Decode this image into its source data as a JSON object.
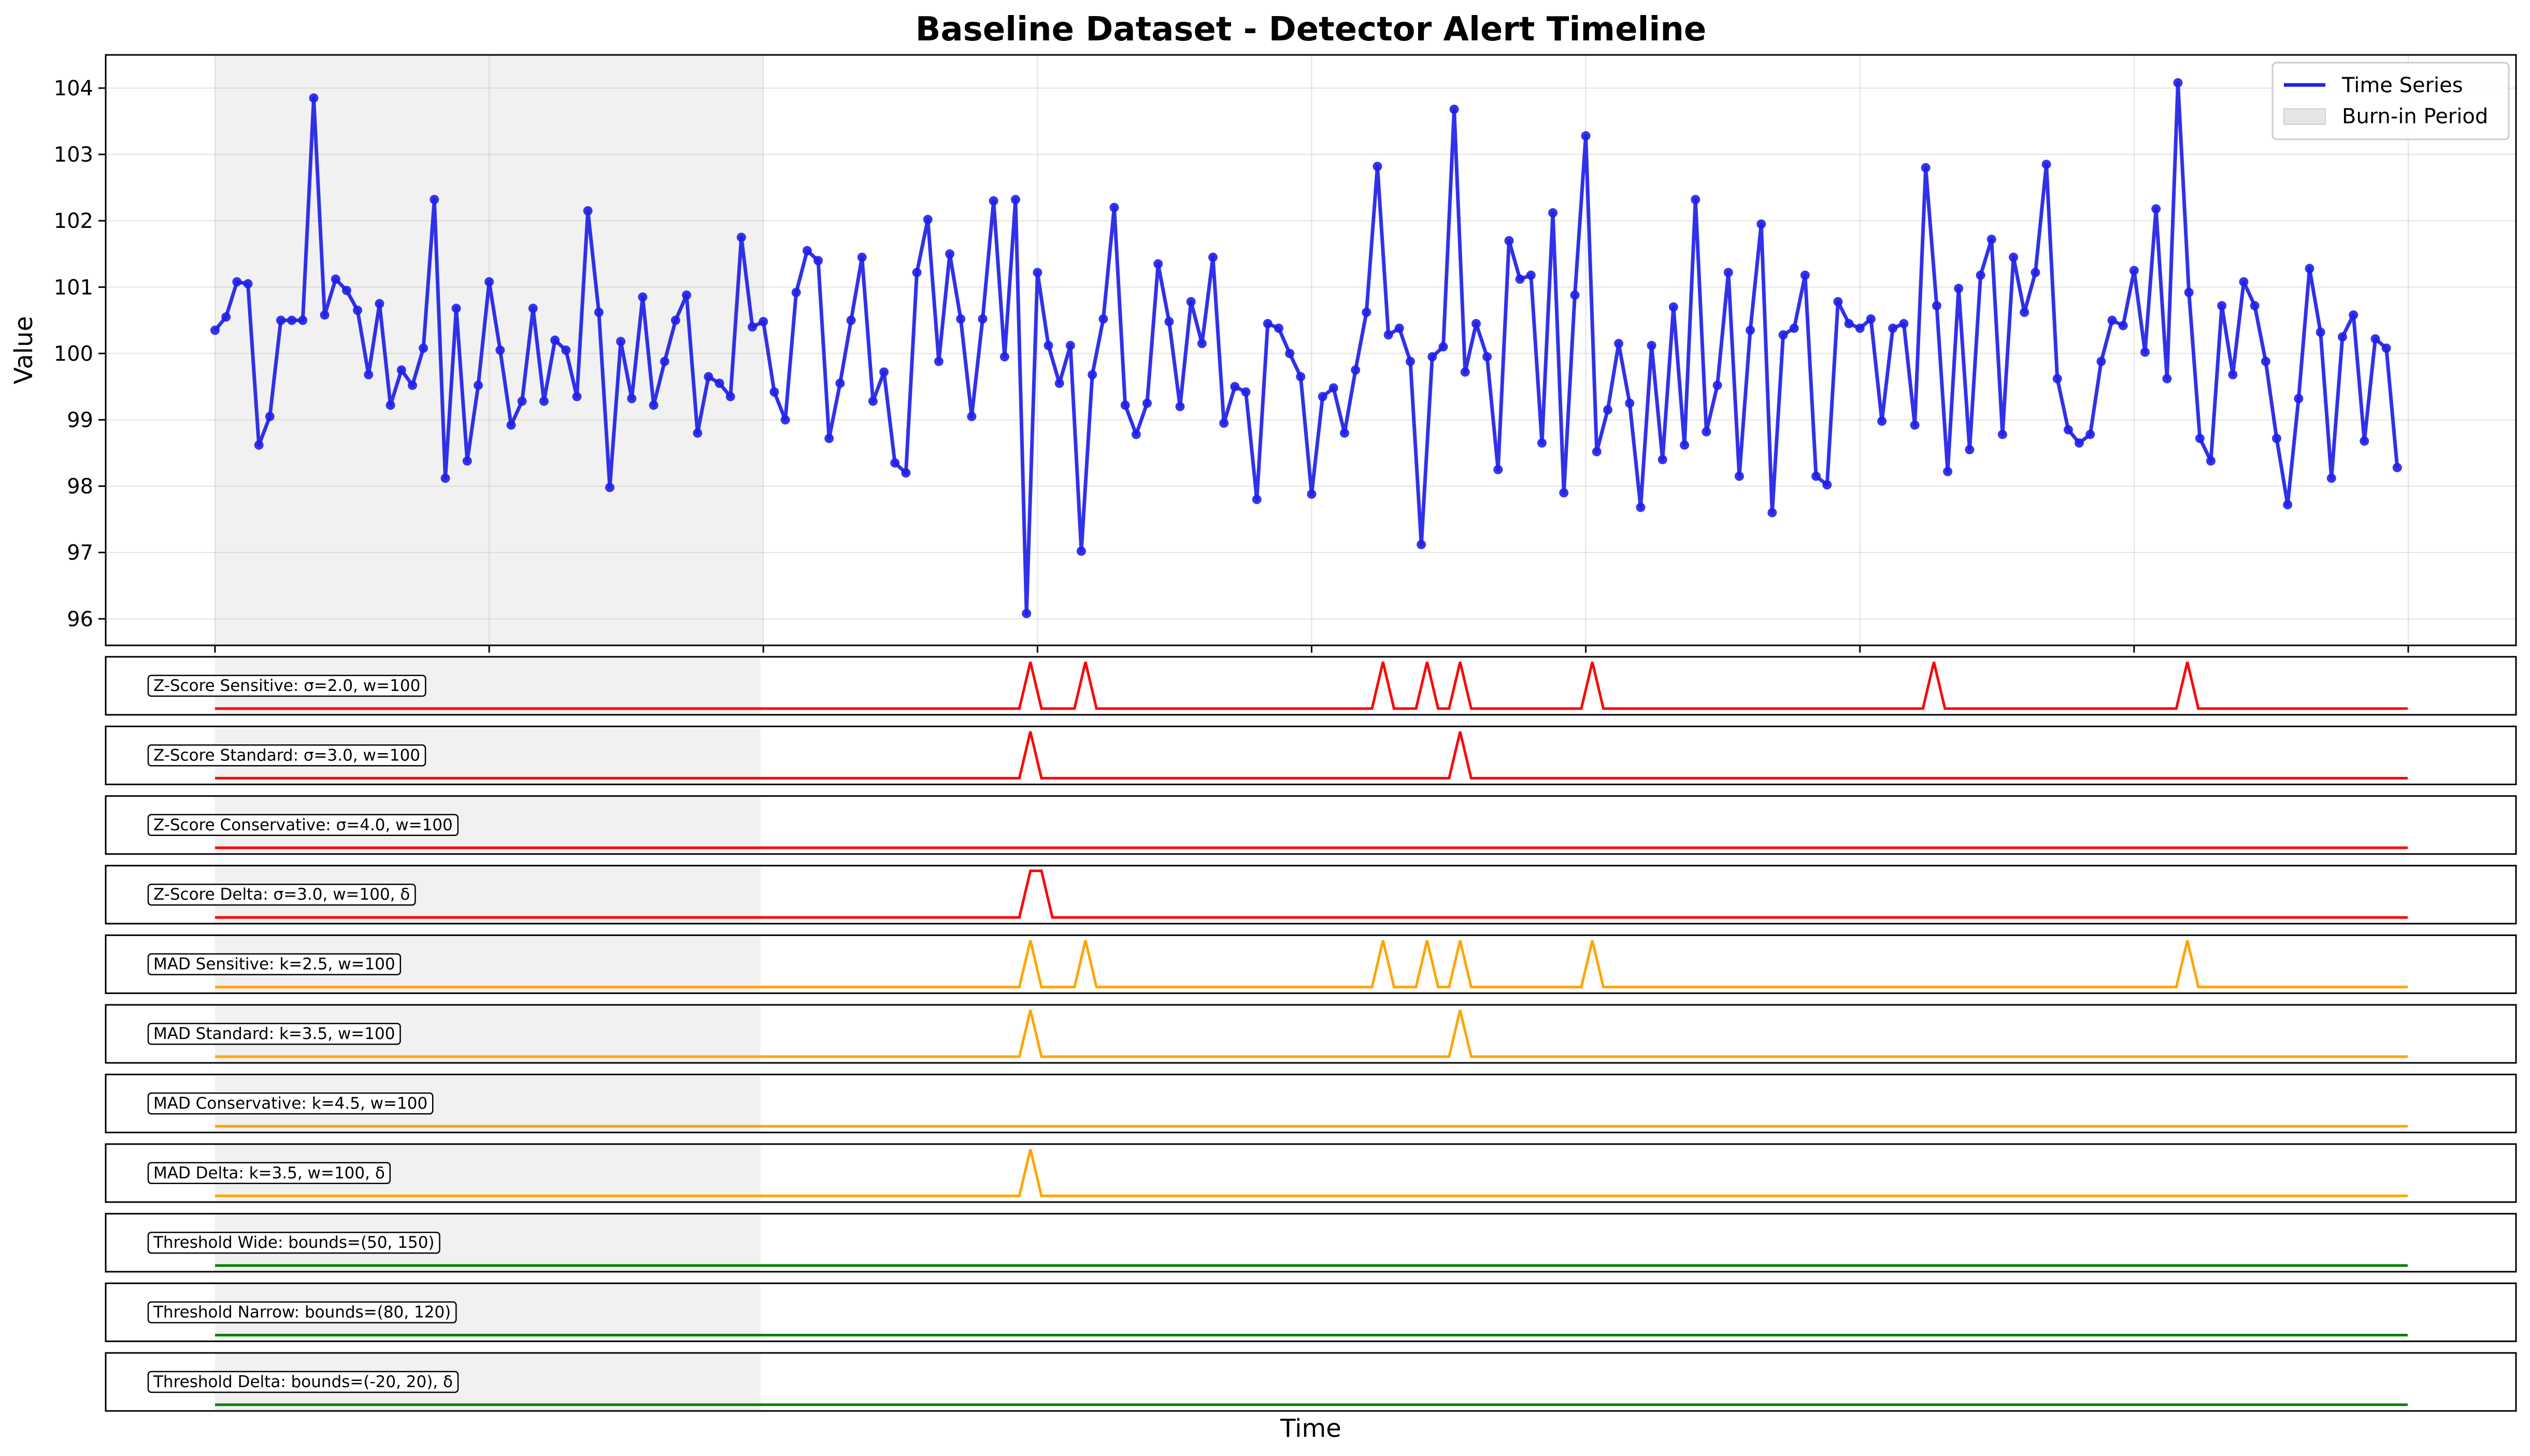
{
  "chart_data": {
    "type": "line",
    "title": "Baseline Dataset - Detector Alert Timeline",
    "xlabel": "Time",
    "ylabel": "Value",
    "xlim": [
      -2,
      200
    ],
    "ylim": [
      95.6,
      104.5
    ],
    "yticks": [
      96,
      97,
      98,
      99,
      100,
      101,
      102,
      103,
      104
    ],
    "xticks": [
      0,
      25,
      50,
      75,
      100,
      125,
      150,
      175,
      200
    ],
    "grid": true,
    "legend_position": "top-right",
    "legend": [
      {
        "label": "Time Series",
        "kind": "line"
      },
      {
        "label": "Burn-in Period",
        "kind": "patch"
      }
    ],
    "burn_in": {
      "label": "Burn-in Period",
      "x_start": 0,
      "x_end": 50
    },
    "series": [
      {
        "name": "Time Series",
        "color": "#2020e8",
        "values": [
          100.35,
          100.55,
          101.08,
          101.05,
          98.62,
          99.05,
          100.5,
          100.5,
          100.5,
          103.85,
          100.58,
          101.12,
          100.95,
          100.65,
          99.68,
          100.75,
          99.22,
          99.75,
          99.52,
          100.08,
          102.32,
          98.12,
          100.68,
          98.38,
          99.52,
          101.08,
          100.05,
          98.92,
          99.28,
          100.68,
          99.28,
          100.2,
          100.05,
          99.35,
          102.15,
          100.62,
          97.98,
          100.18,
          99.32,
          100.85,
          99.22,
          99.88,
          100.5,
          100.88,
          98.8,
          99.65,
          99.55,
          99.35,
          101.75,
          100.4,
          100.48,
          99.42,
          99.0,
          100.92,
          101.55,
          101.4,
          98.72,
          99.55,
          100.5,
          101.45,
          99.28,
          99.72,
          98.35,
          98.2,
          101.22,
          102.02,
          99.88,
          101.5,
          100.52,
          99.05,
          100.52,
          102.3,
          99.95,
          102.32,
          96.08,
          101.22,
          100.12,
          99.55,
          100.12,
          97.02,
          99.68,
          100.52,
          102.2,
          99.22,
          98.78,
          99.25,
          101.35,
          100.48,
          99.2,
          100.78,
          100.15,
          101.45,
          98.95,
          99.5,
          99.42,
          97.8,
          100.45,
          100.38,
          100.0,
          99.65,
          97.88,
          99.35,
          99.48,
          98.8,
          99.75,
          100.62,
          102.82,
          100.28,
          100.38,
          99.88,
          97.12,
          99.95,
          100.1,
          103.68,
          99.72,
          100.45,
          99.95,
          98.25,
          101.7,
          101.12,
          101.18,
          98.65,
          102.12,
          97.9,
          100.88,
          103.28,
          98.52,
          99.15,
          100.15,
          99.25,
          97.68,
          100.12,
          98.4,
          100.7,
          98.62,
          102.32,
          98.82,
          99.52,
          101.22,
          98.15,
          100.35,
          101.95,
          97.6,
          100.28,
          100.38,
          101.18,
          98.15,
          98.02,
          100.78,
          100.45,
          100.38,
          100.52,
          98.98,
          100.38,
          100.45,
          98.92,
          102.8,
          100.72,
          98.22,
          100.98,
          98.55,
          101.18,
          101.72,
          98.78,
          101.45,
          100.62,
          101.22,
          102.85,
          99.62,
          98.85,
          98.65,
          98.78,
          99.88,
          100.5,
          100.42,
          101.25,
          100.02,
          102.18,
          99.62,
          104.08,
          100.92,
          98.72,
          98.38,
          100.72,
          99.68,
          101.08,
          100.72,
          99.88,
          98.72,
          97.72,
          99.32,
          101.28,
          100.32,
          98.12,
          100.25,
          100.58,
          98.68,
          100.22,
          100.08,
          98.28
        ]
      }
    ],
    "detectors": [
      {
        "label": "Z-Score Sensitive: σ=2.0, w=100",
        "color": "#ff0000",
        "alerts": [
          74,
          79,
          106,
          110,
          113,
          125,
          156,
          179
        ]
      },
      {
        "label": "Z-Score Standard: σ=3.0, w=100",
        "color": "#ff0000",
        "alerts": [
          74,
          113
        ]
      },
      {
        "label": "Z-Score Conservative: σ=4.0, w=100",
        "color": "#ff0000",
        "alerts": []
      },
      {
        "label": "Z-Score Delta: σ=3.0, w=100, δ",
        "color": "#ff0000",
        "alerts": [
          74,
          75
        ]
      },
      {
        "label": "MAD Sensitive: k=2.5, w=100",
        "color": "#ffa500",
        "alerts": [
          74,
          79,
          106,
          110,
          113,
          125,
          179
        ]
      },
      {
        "label": "MAD Standard: k=3.5, w=100",
        "color": "#ffa500",
        "alerts": [
          74,
          113
        ]
      },
      {
        "label": "MAD Conservative: k=4.5, w=100",
        "color": "#ffa500",
        "alerts": []
      },
      {
        "label": "MAD Delta: k=3.5, w=100, δ",
        "color": "#ffa500",
        "alerts": [
          74
        ]
      },
      {
        "label": "Threshold Wide: bounds=(50, 150)",
        "color": "#008000",
        "alerts": []
      },
      {
        "label": "Threshold Narrow: bounds=(80, 120)",
        "color": "#008000",
        "alerts": []
      },
      {
        "label": "Threshold Delta: bounds=(-20, 20), δ",
        "color": "#008000",
        "alerts": []
      }
    ]
  }
}
